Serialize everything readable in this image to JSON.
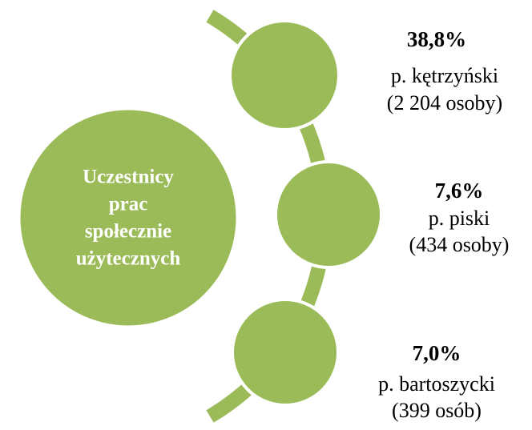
{
  "center": {
    "lines": [
      "Uczestnicy",
      "prac",
      "społecznie",
      "użytecznych"
    ]
  },
  "items": [
    {
      "percent": "38,8%",
      "county": "p. kętrzyński",
      "count": "(2 204 osoby)"
    },
    {
      "percent": "7,6%",
      "county": "p. piski",
      "count": "(434 osoby)"
    },
    {
      "percent": "7,0%",
      "county": "p. bartoszycki",
      "count": "(399 osób)"
    }
  ]
}
